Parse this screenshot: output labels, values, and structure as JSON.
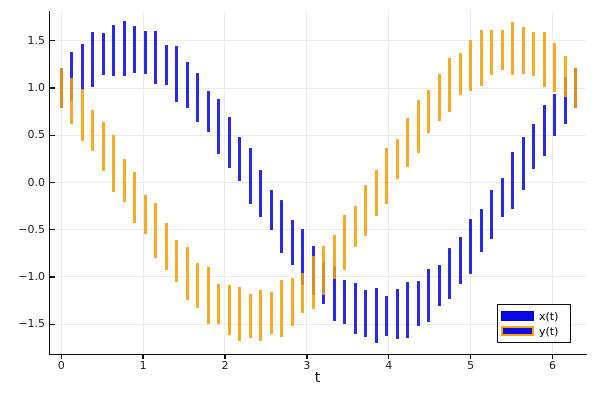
{
  "figure": {
    "xlabel": "t",
    "x_tick_labels": [
      "0",
      "1",
      "2",
      "3",
      "4",
      "5",
      "6"
    ],
    "y_tick_labels": [
      "1.5",
      "1.0",
      "0.5",
      "0.0",
      "−0.5",
      "−1.0",
      "−1.5"
    ],
    "legend": {
      "position": "bottom-right",
      "entries": [
        {
          "label": "x(t)",
          "swatch_fill": "#0a0ae8",
          "swatch_border": "#0606c8"
        },
        {
          "label": "y(t)",
          "swatch_fill": "#0a0ae8",
          "swatch_border": "#ffa602"
        }
      ]
    },
    "colors": {
      "series_x": "#0303e8",
      "series_y": "#f79d02",
      "grid": "#ececec",
      "axis": "#0e0e0e",
      "background": "#ffffff"
    }
  },
  "chart_data": {
    "type": "bar",
    "subtype": "vertical-range-bars (each point drawn as a vertical segment center±half)",
    "title": "",
    "xlabel": "t",
    "ylabel": "",
    "grid": true,
    "legend_position": "bottom-right",
    "xlim": [
      -0.15,
      6.41
    ],
    "ylim": [
      -1.815,
      1.815
    ],
    "x_ticks": [
      0,
      1,
      2,
      3,
      4,
      5,
      6
    ],
    "y_ticks": [
      1.5,
      1.0,
      0.5,
      0.0,
      -0.5,
      -1.0,
      -1.5
    ],
    "x": [
      0,
      0.128,
      0.256,
      0.385,
      0.513,
      0.641,
      0.769,
      0.898,
      1.026,
      1.154,
      1.282,
      1.41,
      1.539,
      1.667,
      1.795,
      1.923,
      2.052,
      2.18,
      2.308,
      2.436,
      2.565,
      2.693,
      2.821,
      2.949,
      3.077,
      3.206,
      3.334,
      3.462,
      3.59,
      3.719,
      3.847,
      3.975,
      4.103,
      4.231,
      4.36,
      4.488,
      4.616,
      4.744,
      4.873,
      5.001,
      5.129,
      5.257,
      5.386,
      5.514,
      5.642,
      5.77,
      5.898,
      6.027,
      6.155,
      6.283
    ],
    "series": [
      {
        "name": "x(t)",
        "color": "#0303e8",
        "alpha": 0.85,
        "center_function": "cos(t) + sin(t)",
        "center": [
          1,
          1.12,
          1.221,
          1.302,
          1.362,
          1.4,
          1.414,
          1.405,
          1.373,
          1.319,
          1.243,
          1.147,
          1.031,
          0.899,
          0.752,
          0.593,
          0.424,
          0.248,
          0.068,
          -0.113,
          -0.293,
          -0.467,
          -0.634,
          -0.79,
          -0.934,
          -1.062,
          -1.173,
          -1.264,
          -1.335,
          -1.384,
          -1.41,
          -1.413,
          -1.392,
          -1.349,
          -1.284,
          -1.198,
          -1.091,
          -0.967,
          -0.828,
          -0.674,
          -0.51,
          -0.337,
          -0.158,
          0.023,
          0.203,
          0.381,
          0.552,
          0.714,
          0.864,
          1
        ],
        "half_length": [
          0.21,
          0.26,
          0.24,
          0.29,
          0.22,
          0.27,
          0.29,
          0.25,
          0.23,
          0.28,
          0.21,
          0.3,
          0.24,
          0.26,
          0.22,
          0.29,
          0.27,
          0.23,
          0.3,
          0.25,
          0.21,
          0.28,
          0.24,
          0.3,
          0.26,
          0.22,
          0.29,
          0.23,
          0.27,
          0.25,
          0.29,
          0.21,
          0.26,
          0.3,
          0.24,
          0.28,
          0.22,
          0.27,
          0.25,
          0.29,
          0.23,
          0.26,
          0.21,
          0.3,
          0.28,
          0.24,
          0.27,
          0.22,
          0.25,
          0.21
        ]
      },
      {
        "name": "y(t)",
        "color": "#f79d02",
        "alpha": 0.87,
        "center_function": "cos(t) - sin(t)",
        "center": [
          1,
          0.864,
          0.714,
          0.552,
          0.381,
          0.203,
          0.023,
          -0.158,
          -0.337,
          -0.51,
          -0.674,
          -0.828,
          -0.967,
          -1.091,
          -1.198,
          -1.284,
          -1.349,
          -1.392,
          -1.413,
          -1.41,
          -1.384,
          -1.335,
          -1.264,
          -1.173,
          -1.062,
          -0.934,
          -0.79,
          -0.634,
          -0.467,
          -0.293,
          -0.113,
          0.068,
          0.248,
          0.424,
          0.593,
          0.752,
          0.899,
          1.031,
          1.147,
          1.243,
          1.319,
          1.373,
          1.405,
          1.414,
          1.4,
          1.362,
          1.302,
          1.221,
          1.12,
          1
        ],
        "half_length": [
          0.21,
          0.24,
          0.28,
          0.22,
          0.26,
          0.3,
          0.23,
          0.27,
          0.21,
          0.29,
          0.25,
          0.22,
          0.28,
          0.24,
          0.3,
          0.21,
          0.26,
          0.29,
          0.23,
          0.27,
          0.22,
          0.3,
          0.25,
          0.21,
          0.28,
          0.26,
          0.23,
          0.29,
          0.22,
          0.27,
          0.24,
          0.3,
          0.21,
          0.26,
          0.28,
          0.23,
          0.25,
          0.29,
          0.22,
          0.27,
          0.3,
          0.24,
          0.21,
          0.28,
          0.25,
          0.23,
          0.29,
          0.26,
          0.22,
          0.21
        ]
      }
    ]
  }
}
